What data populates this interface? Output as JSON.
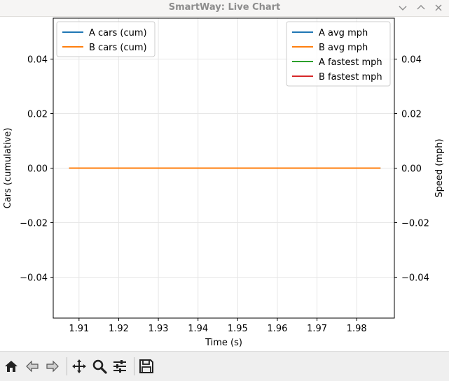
{
  "window": {
    "title": "SmartWay: Live Chart"
  },
  "toolbar": {
    "icons": [
      "home-icon",
      "back-arrow-icon",
      "forward-arrow-icon",
      "pan-icon",
      "zoom-icon",
      "configure-subplots-icon",
      "save-icon"
    ]
  },
  "chart_data": {
    "type": "line",
    "xlabel": "Time (s)",
    "ylabel_left": "Cars (cumulative)",
    "ylabel_right": "Speed (mph)",
    "xlim": [
      1.9035,
      1.9895
    ],
    "ylim_left": [
      -0.055,
      0.055
    ],
    "ylim_right": [
      -0.055,
      0.055
    ],
    "xticks": [
      1.91,
      1.92,
      1.93,
      1.94,
      1.95,
      1.96,
      1.97,
      1.98
    ],
    "yticks_left": [
      -0.04,
      -0.02,
      0.0,
      0.02,
      0.04
    ],
    "yticks_right": [
      -0.04,
      -0.02,
      0.0,
      0.02,
      0.04
    ],
    "grid": true,
    "legend_left": {
      "placement": "upper-left",
      "entries": [
        "A cars (cum)",
        "B cars (cum)"
      ]
    },
    "legend_right": {
      "placement": "upper-right",
      "entries": [
        "A avg mph",
        "B avg mph",
        "A fastest mph",
        "B fastest mph"
      ]
    },
    "series": [
      {
        "name": "A cars (cum)",
        "axis": "left",
        "color": "#1f77b4",
        "x": [
          1.9075,
          1.986
        ],
        "y": [
          0,
          0
        ]
      },
      {
        "name": "B cars (cum)",
        "axis": "left",
        "color": "#ff7f0e",
        "x": [
          1.9075,
          1.986
        ],
        "y": [
          0,
          0
        ]
      },
      {
        "name": "A avg mph",
        "axis": "right",
        "color": "#1f77b4",
        "x": [],
        "y": []
      },
      {
        "name": "B avg mph",
        "axis": "right",
        "color": "#ff7f0e",
        "x": [],
        "y": []
      },
      {
        "name": "A fastest mph",
        "axis": "right",
        "color": "#2ca02c",
        "x": [],
        "y": []
      },
      {
        "name": "B fastest mph",
        "axis": "right",
        "color": "#d62728",
        "x": [],
        "y": []
      }
    ]
  }
}
